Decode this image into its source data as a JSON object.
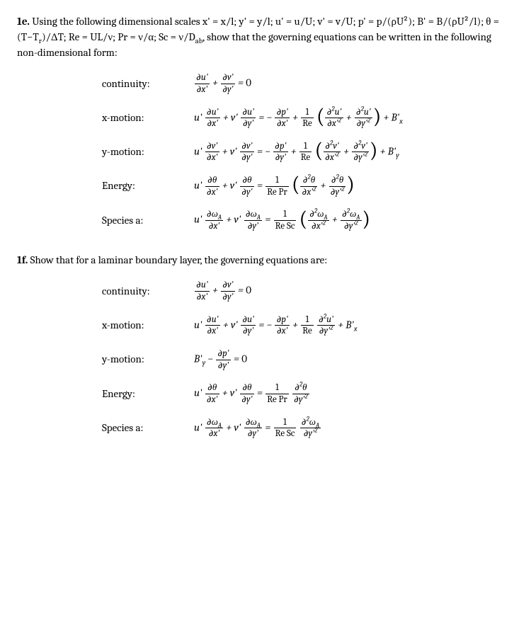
{
  "doc": {
    "background_color": "#ffffff",
    "text_color": "#000000",
    "font_family": "Cambria/serif",
    "base_fontsize": 15
  },
  "p1e": {
    "lead": "1e.",
    "intro_html": "Using the following dimensional scales x' = x/l; y' = y/l; u' = u/U; v' = v/U; p' = p/(ρU²); B' = B/(ρU²/l); θ = (T−T<sub>r</sub>)/ΔT; Re = UL/ν; Pr = ν/α; Sc = ν/D<sub>ab</sub>, show that the governing equations can be written in the following non-dimensional form:",
    "rows": [
      {
        "label": "continuity:",
        "eq_html": "<span class='frac'><span class='num'>∂u'</span><span class='den'>∂x'</span></span> + <span class='frac'><span class='num'>∂v'</span><span class='den'>∂y'</span></span> = <span class='rm'>0</span>"
      },
      {
        "label": "x-motion:",
        "eq_html": "u' <span class='frac'><span class='num'>∂u'</span><span class='den'>∂x'</span></span> + v' <span class='frac'><span class='num'>∂u'</span><span class='den'>∂y'</span></span> = − <span class='frac'><span class='num'>∂p'</span><span class='den'>∂x'</span></span> + <span class='frac'><span class='num'><span class='rm'>1</span></span><span class='den'><span class='rm'>Re</span></span></span> <span class='paren'>(</span><span class='frac'><span class='num'>∂<sup>2</sup>u'</span><span class='den'>∂x'<sup>2</sup></span></span> + <span class='frac'><span class='num'>∂<sup>2</sup>u'</span><span class='den'>∂y'<sup>2</sup></span></span><span class='paren'>)</span> + B'<sub>x</sub>"
      },
      {
        "label": "y-motion:",
        "eq_html": "u' <span class='frac'><span class='num'>∂v'</span><span class='den'>∂x'</span></span> + v' <span class='frac'><span class='num'>∂v'</span><span class='den'>∂y'</span></span> = − <span class='frac'><span class='num'>∂p'</span><span class='den'>∂y'</span></span> + <span class='frac'><span class='num'><span class='rm'>1</span></span><span class='den'><span class='rm'>Re</span></span></span> <span class='paren'>(</span><span class='frac'><span class='num'>∂<sup>2</sup>v'</span><span class='den'>∂x'<sup>2</sup></span></span> + <span class='frac'><span class='num'>∂<sup>2</sup>v'</span><span class='den'>∂y'<sup>2</sup></span></span><span class='paren'>)</span> + B'<sub>y</sub>"
      },
      {
        "label": "Energy:",
        "eq_html": "u' <span class='frac'><span class='num'>∂θ</span><span class='den'>∂x'</span></span> + v' <span class='frac'><span class='num'>∂θ</span><span class='den'>∂y'</span></span> = <span class='frac'><span class='num'><span class='rm'>1</span></span><span class='den'><span class='rm'>Re Pr</span></span></span> <span class='paren'>(</span><span class='frac'><span class='num'>∂<sup>2</sup>θ</span><span class='den'>∂x'<sup>2</sup></span></span> + <span class='frac'><span class='num'>∂<sup>2</sup>θ</span><span class='den'>∂y'<sup>2</sup></span></span><span class='paren'>)</span>"
      },
      {
        "label": "Species a:",
        "eq_html": "u' <span class='frac'><span class='num'>∂ω<sub>A</sub></span><span class='den'>∂x'</span></span> + v' <span class='frac'><span class='num'>∂ω<sub>A</sub></span><span class='den'>∂y'</span></span> = <span class='frac'><span class='num'><span class='rm'>1</span></span><span class='den'><span class='rm'>Re Sc</span></span></span> <span class='paren'>(</span><span class='frac'><span class='num'>∂<sup>2</sup>ω<sub>A</sub></span><span class='den'>∂x'<sup>2</sup></span></span> + <span class='frac'><span class='num'>∂<sup>2</sup>ω<sub>A</sub></span><span class='den'>∂y'<sup>2</sup></span></span><span class='paren'>)</span>"
      }
    ]
  },
  "p1f": {
    "lead": "1f.",
    "intro_html": "Show that for a laminar boundary layer, the governing equations are:",
    "rows": [
      {
        "label": "continuity:",
        "eq_html": "<span class='frac'><span class='num'>∂u'</span><span class='den'>∂x'</span></span> + <span class='frac'><span class='num'>∂v'</span><span class='den'>∂y'</span></span> = <span class='rm'>0</span>"
      },
      {
        "label": "x-motion:",
        "eq_html": "u' <span class='frac'><span class='num'>∂u'</span><span class='den'>∂x'</span></span> + v' <span class='frac'><span class='num'>∂u'</span><span class='den'>∂y'</span></span> = − <span class='frac'><span class='num'>∂p'</span><span class='den'>∂x'</span></span> + <span class='frac'><span class='num'><span class='rm'>1</span></span><span class='den'><span class='rm'>Re</span></span></span> <span class='frac'><span class='num'>∂<sup>2</sup>u'</span><span class='den'>∂y'<sup>2</sup></span></span> + B'<sub>x</sub>"
      },
      {
        "label": "y-motion:",
        "eq_html": "B'<sub>y</sub> − <span class='frac'><span class='num'>∂p'</span><span class='den'>∂y'</span></span> = <span class='rm'>0</span>"
      },
      {
        "label": "Energy:",
        "eq_html": "u' <span class='frac'><span class='num'>∂θ</span><span class='den'>∂x'</span></span> + v' <span class='frac'><span class='num'>∂θ</span><span class='den'>∂y'</span></span> = <span class='frac'><span class='num'><span class='rm'>1</span></span><span class='den'><span class='rm'>Re Pr</span></span></span> <span class='frac'><span class='num'>∂<sup>2</sup>θ</span><span class='den'>∂y'<sup>2</sup></span></span>"
      },
      {
        "label": "Species a:",
        "eq_html": "u' <span class='frac'><span class='num'>∂ω<sub>A</sub></span><span class='den'>∂x'</span></span> + v' <span class='frac'><span class='num'>∂ω<sub>A</sub></span><span class='den'>∂y'</span></span> = <span class='frac'><span class='num'><span class='rm'>1</span></span><span class='den'><span class='rm'>Re Sc</span></span></span> <span class='frac'><span class='num'>∂<sup>2</sup>ω<sub>A</sub></span><span class='den'>∂y'<sup>2</sup></span></span>"
      }
    ]
  }
}
